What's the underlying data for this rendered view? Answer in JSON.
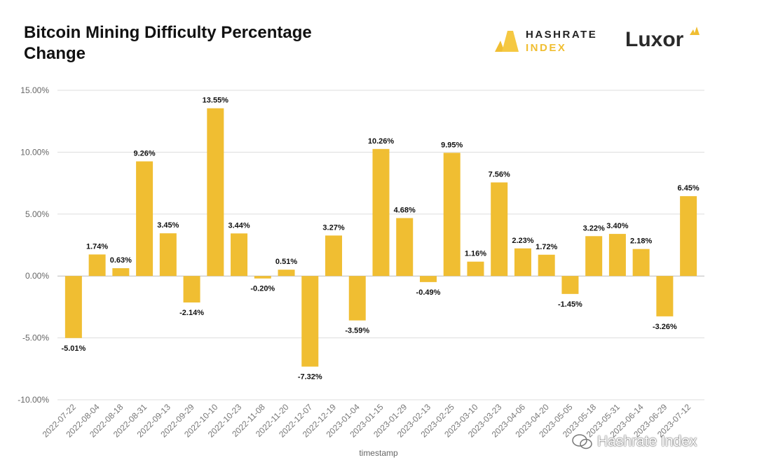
{
  "header": {
    "title": "Bitcoin Mining Difficulty Percentage Change",
    "logo_hashrate_line1": "HASHRATE",
    "logo_hashrate_line2": "INDEX",
    "logo_luxor": "Luxor"
  },
  "watermark": {
    "text": "Hashrate Index",
    "icon": "wechat-icon"
  },
  "colors": {
    "bar": "#F0BE32",
    "grid": "#DDDDDD"
  },
  "chart_data": {
    "type": "bar",
    "title": "Bitcoin Mining Difficulty Percentage Change",
    "xlabel": "timestamp",
    "ylabel": "",
    "ylim": [
      -10,
      15
    ],
    "yticks": [
      15,
      10,
      5,
      0,
      -5,
      -10
    ],
    "ytick_labels": [
      "15.00%",
      "10.00%",
      "5.00%",
      "0.00%",
      "-5.00%",
      "-10.00%"
    ],
    "grid": true,
    "categories": [
      "2022-07-22",
      "2022-08-04",
      "2022-08-18",
      "2022-08-31",
      "2022-09-13",
      "2022-09-29",
      "2022-10-10",
      "2022-10-23",
      "2022-11-08",
      "2022-11-20",
      "2022-12-07",
      "2022-12-19",
      "2023-01-04",
      "2023-01-15",
      "2023-01-29",
      "2023-02-13",
      "2023-02-25",
      "2023-03-10",
      "2023-03-23",
      "2023-04-06",
      "2023-04-20",
      "2023-05-05",
      "2023-05-18",
      "2023-05-31",
      "2023-06-14",
      "2023-06-29",
      "2023-07-12"
    ],
    "values": [
      -5.01,
      1.74,
      0.63,
      9.26,
      3.45,
      -2.14,
      13.55,
      3.44,
      -0.2,
      0.51,
      -7.32,
      3.27,
      -3.59,
      10.26,
      4.68,
      -0.49,
      9.95,
      1.16,
      7.56,
      2.23,
      1.72,
      -1.45,
      3.22,
      3.4,
      2.18,
      -3.26,
      6.45
    ],
    "data_labels": [
      "-5.01%",
      "1.74%",
      "0.63%",
      "9.26%",
      "3.45%",
      "-2.14%",
      "13.55%",
      "3.44%",
      "-0.20%",
      "0.51%",
      "-7.32%",
      "3.27%",
      "-3.59%",
      "10.26%",
      "4.68%",
      "-0.49%",
      "9.95%",
      "1.16%",
      "7.56%",
      "2.23%",
      "1.72%",
      "-1.45%",
      "3.22%",
      "3.40%",
      "2.18%",
      "-3.26%",
      "6.45%"
    ]
  }
}
